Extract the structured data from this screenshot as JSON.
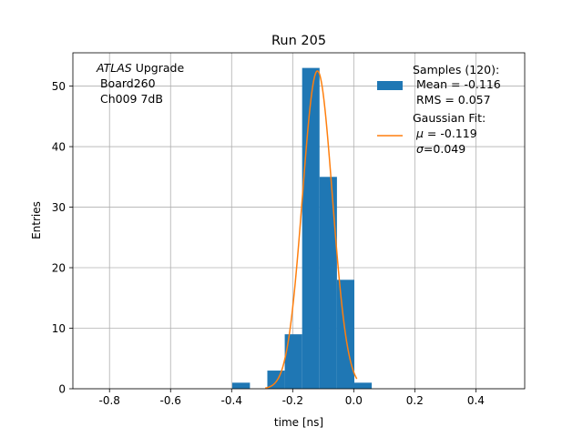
{
  "chart_data": {
    "type": "bar",
    "title": "Run 205",
    "xlabel": "time [ns]",
    "ylabel": "Entries",
    "xlim": [
      -0.92,
      0.56
    ],
    "ylim": [
      0,
      55.5
    ],
    "xticks": [
      "-0.8",
      "-0.6",
      "-0.4",
      "-0.2",
      "0.0",
      "0.2",
      "0.4"
    ],
    "xtick_values": [
      -0.8,
      -0.6,
      -0.4,
      -0.2,
      0.0,
      0.2,
      0.4
    ],
    "yticks": [
      "0",
      "10",
      "20",
      "30",
      "40",
      "50"
    ],
    "ytick_values": [
      0,
      10,
      20,
      30,
      40,
      50
    ],
    "grid": true,
    "annotation": {
      "line1_italic": "ATLAS",
      "line1_rest": " Upgrade",
      "line2": " Board260",
      "line3": " Ch009 7dB"
    },
    "histogram": {
      "name": "Samples (120):",
      "stats": [
        " Mean = -0.116",
        " RMS = 0.057"
      ],
      "color": "#1f77b4",
      "bins": [
        {
          "x0": -0.398,
          "x1": -0.34,
          "count": 1
        },
        {
          "x0": -0.34,
          "x1": -0.283,
          "count": 0
        },
        {
          "x0": -0.283,
          "x1": -0.226,
          "count": 3
        },
        {
          "x0": -0.226,
          "x1": -0.169,
          "count": 9
        },
        {
          "x0": -0.169,
          "x1": -0.112,
          "count": 53
        },
        {
          "x0": -0.112,
          "x1": -0.055,
          "count": 35
        },
        {
          "x0": -0.055,
          "x1": 0.002,
          "count": 18
        },
        {
          "x0": 0.002,
          "x1": 0.059,
          "count": 1
        }
      ]
    },
    "fit": {
      "name": "Gaussian Fit:",
      "stats_prefix": [
        " ",
        " "
      ],
      "stats_symbol": [
        "μ",
        "σ"
      ],
      "stats_rest": [
        " = -0.119",
        "=0.049"
      ],
      "color": "#ff7f0e",
      "mu": -0.119,
      "sigma": 0.049,
      "amplitude": 52.5,
      "x_range": [
        -0.29,
        0.01
      ]
    },
    "legend_position": "upper right"
  }
}
